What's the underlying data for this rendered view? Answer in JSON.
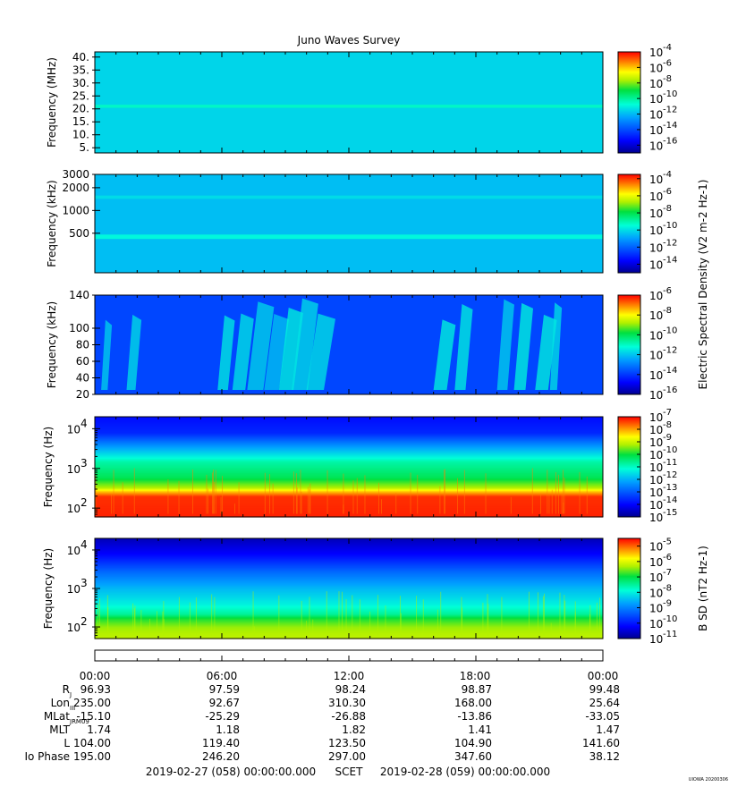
{
  "title": "Juno Waves Survey",
  "footer": {
    "start": "2019-02-27 (058) 00:00:00.000",
    "mid": "SCET",
    "end": "2019-02-28 (059) 00:00:00.000",
    "stamp": "UIOWA 20200306"
  },
  "ephemeris": {
    "time_labels": [
      "00:00",
      "06:00",
      "12:00",
      "18:00",
      "00:00"
    ],
    "rows": [
      {
        "label": "R",
        "sub": "J",
        "values": [
          "96.93",
          "97.59",
          "98.24",
          "98.87",
          "99.48"
        ]
      },
      {
        "label": "Lon",
        "sub": "III",
        "values": [
          "235.00",
          "92.67",
          "310.30",
          "168.00",
          "25.64"
        ]
      },
      {
        "label": "MLat",
        "sub": "JRM09",
        "values": [
          "-15.10",
          "-25.29",
          "-26.88",
          "-13.86",
          "-33.05"
        ]
      },
      {
        "label": "MLT",
        "sub": "",
        "values": [
          "1.74",
          "1.18",
          "1.82",
          "1.41",
          "1.47"
        ]
      },
      {
        "label": "L",
        "sub": "",
        "values": [
          "104.00",
          "119.40",
          "123.50",
          "104.90",
          "141.60"
        ]
      },
      {
        "label": "Io Phase",
        "sub": "",
        "values": [
          "195.00",
          "246.20",
          "297.00",
          "347.60",
          "38.12"
        ]
      }
    ]
  },
  "colorbar_labels": {
    "electric": "Electric Spectral Density (V2 m-2 Hz-1)",
    "magnetic": "B SD (nT2 Hz-1)"
  },
  "colors": {
    "cyan": "#00ffe0",
    "green": "#00d830",
    "blue": "#0060ff",
    "deep_blue": "#0000c0",
    "red": "#ff1800",
    "orange": "#ff8c00",
    "yellow": "#ffe800"
  },
  "chart_data": [
    {
      "type": "heatmap",
      "name": "hfr-high",
      "ylabel": "Frequency (MHz)",
      "yscale": "linear",
      "ylim": [
        3,
        42
      ],
      "yticks": [
        5,
        10,
        15,
        20,
        25,
        30,
        35,
        40
      ],
      "ytick_labels": [
        "5.",
        "10.",
        "15.",
        "20.",
        "25.",
        "30.",
        "35.",
        "40."
      ],
      "colorbar": {
        "log_min": -17,
        "log_max": -4,
        "ticks": [
          -16,
          -14,
          -12,
          -10,
          -8,
          -6,
          -4
        ]
      },
      "background_log": -11.5,
      "bands": [
        {
          "freq": 21,
          "log": -10.5,
          "width": 1.2
        }
      ]
    },
    {
      "type": "heatmap",
      "name": "hfr-low",
      "ylabel": "Frequency (kHz)",
      "yscale": "log",
      "ylim": [
        150,
        3000
      ],
      "yticks": [
        500,
        1000,
        2000,
        3000
      ],
      "ytick_labels": [
        "500",
        "1000",
        "2000",
        "3000"
      ],
      "colorbar": {
        "log_min": -15,
        "log_max": -3.5,
        "ticks": [
          -14,
          -12,
          -10,
          -8,
          -6,
          -4
        ]
      },
      "background_log": -10.5,
      "bands": [
        {
          "freq": 450,
          "log": -9.5,
          "width": 60
        },
        {
          "freq": 1500,
          "log": -10,
          "width": 150
        }
      ]
    },
    {
      "type": "heatmap",
      "name": "lfr-high",
      "ylabel": "Frequency (kHz)",
      "yscale": "linear",
      "ylim": [
        20,
        140
      ],
      "yticks": [
        20,
        40,
        60,
        80,
        100,
        140
      ],
      "ytick_labels": [
        "20",
        "40",
        "60",
        "80",
        "100",
        "140"
      ],
      "colorbar": {
        "log_min": -16,
        "log_max": -6,
        "ticks": [
          -16,
          -14,
          -12,
          -10,
          -8,
          -6
        ]
      },
      "background_log": -13.8,
      "bursts_hours": [
        0.3,
        1.5,
        5.8,
        6.5,
        7.2,
        8.0,
        8.7,
        9.3,
        10.0,
        16.0,
        17.0,
        19.0,
        19.8,
        20.8,
        21.5
      ]
    },
    {
      "type": "heatmap",
      "name": "lfr-low",
      "ylabel": "Frequency (Hz)",
      "yscale": "log",
      "ylim": [
        60,
        20000
      ],
      "yticks": [
        100,
        1000,
        10000
      ],
      "colorbar": {
        "log_min": -15,
        "log_max": -7,
        "ticks": [
          -15,
          -14,
          -13,
          -12,
          -11,
          -10,
          -9,
          -8,
          -7
        ]
      },
      "profile": [
        {
          "freq": 60,
          "log": -7.2
        },
        {
          "freq": 200,
          "log": -7.3
        },
        {
          "freq": 280,
          "log": -8.4
        },
        {
          "freq": 330,
          "log": -9.2
        },
        {
          "freq": 600,
          "log": -10.2
        },
        {
          "freq": 1500,
          "log": -10.8
        },
        {
          "freq": 3500,
          "log": -12.2
        },
        {
          "freq": 8000,
          "log": -13.6
        },
        {
          "freq": 20000,
          "log": -13.9
        }
      ]
    },
    {
      "type": "heatmap",
      "name": "magnetic",
      "ylabel": "Frequency (Hz)",
      "yscale": "log",
      "ylim": [
        50,
        20000
      ],
      "yticks": [
        100,
        1000,
        10000
      ],
      "colorbar": {
        "log_min": -11,
        "log_max": -4.5,
        "ticks": [
          -11,
          -10,
          -9,
          -8,
          -7,
          -6,
          -5
        ]
      },
      "profile": [
        {
          "freq": 50,
          "log": -6.2
        },
        {
          "freq": 100,
          "log": -6.4
        },
        {
          "freq": 170,
          "log": -6.9
        },
        {
          "freq": 220,
          "log": -7.5
        },
        {
          "freq": 400,
          "log": -8.0
        },
        {
          "freq": 1000,
          "log": -8.5
        },
        {
          "freq": 3000,
          "log": -9.3
        },
        {
          "freq": 8000,
          "log": -10.2
        },
        {
          "freq": 20000,
          "log": -10.7
        }
      ]
    }
  ]
}
